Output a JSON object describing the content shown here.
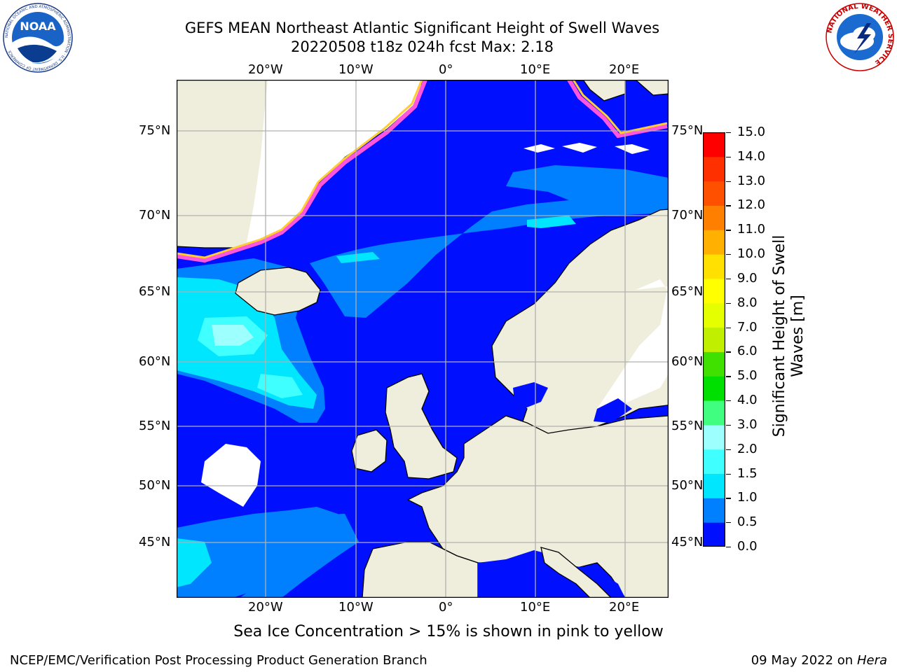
{
  "header": {
    "title_line1": "GEFS MEAN Northeast Atlantic Significant Height of Swell Waves",
    "title_line2": "20220508 t18z 024h fcst   Max: 2.18"
  },
  "logos": {
    "left": {
      "text": "NOAA",
      "ring_text": "NATIONAL OCEANIC AND ATMOSPHERIC ADMINISTRATION · U.S. DEPARTMENT OF COMMERCE",
      "icon": "noaa-logo-icon"
    },
    "right": {
      "ring_text": "NATIONAL WEATHER SERVICE",
      "icon": "nws-logo-icon"
    }
  },
  "map": {
    "lon_ticks": [
      "20°W",
      "10°W",
      "0°",
      "10°E",
      "20°E"
    ],
    "lat_ticks": [
      "75°N",
      "70°N",
      "65°N",
      "60°N",
      "55°N",
      "50°N",
      "45°N"
    ],
    "colors": {
      "land": "#efeedc",
      "ocean_low": "#0010ff",
      "ocean_mid": "#0080ff",
      "ocean_high": "#00e6ff",
      "ocean_peak": "#9effff",
      "grid": "#b0b0b0"
    }
  },
  "colorbar": {
    "label_line1": "Significant Height of Swell",
    "label_line2": "Waves [m]",
    "ticks": [
      "15.0",
      "14.0",
      "13.0",
      "12.0",
      "11.0",
      "10.0",
      "9.0",
      "8.0",
      "7.0",
      "6.0",
      "5.0",
      "4.0",
      "3.0",
      "2.0",
      "1.5",
      "1.0",
      "0.5",
      "0.0"
    ],
    "colors": [
      "#0010ff",
      "#0080ff",
      "#00e6ff",
      "#40ffff",
      "#9effff",
      "#40ff80",
      "#00e000",
      "#40e000",
      "#c0f000",
      "#e6ff00",
      "#ffff00",
      "#ffe000",
      "#ffb000",
      "#ff8000",
      "#ff5000",
      "#ff3000",
      "#ff0000"
    ]
  },
  "footer": {
    "ice_note": "Sea Ice Concentration > 15% is shown in pink to yellow",
    "left": "NCEP/EMC/Verification Post Processing Product Generation Branch",
    "right_date": "09 May 2022 on",
    "right_host": "Hera"
  }
}
